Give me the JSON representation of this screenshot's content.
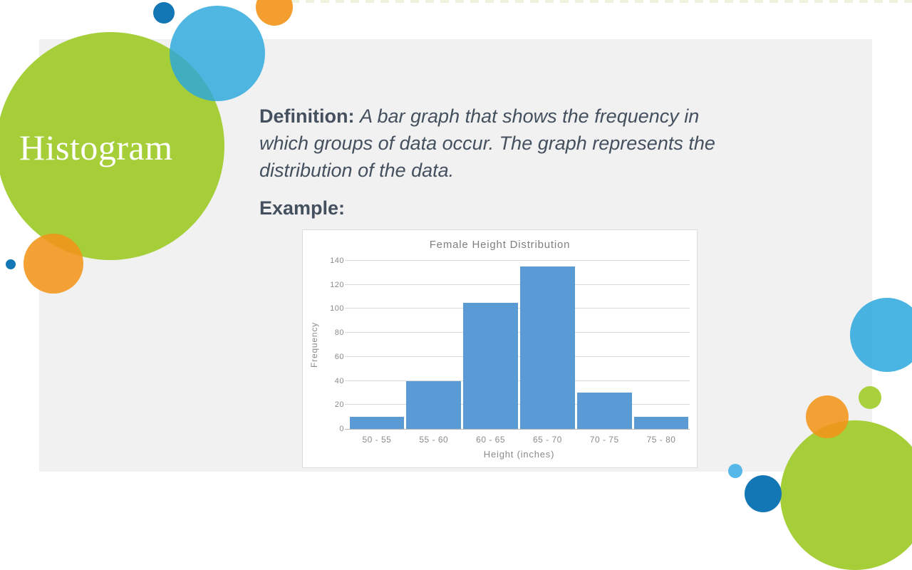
{
  "slide": {
    "title": "Histogram",
    "definition_label": "Definition:",
    "definition_text": "A bar graph that shows the frequency in which groups of data occur. The graph represents the distribution of the data.",
    "example_label": "Example:"
  },
  "palette": {
    "green": "#a5ce39",
    "light_blue": "#45b1e3",
    "dark_blue": "#1377b5",
    "orange": "#f3981b",
    "panel_gray": "#f1f1f2",
    "text_slate": "#44505e",
    "chart_text_gray": "#8a8a8a",
    "bar_blue": "#5b9bd5"
  },
  "chart_data": {
    "type": "bar",
    "title": "Female Height Distribution",
    "categories": [
      "50 - 55",
      "55 - 60",
      "60 - 65",
      "65 - 70",
      "70 - 75",
      "75 - 80"
    ],
    "values": [
      10,
      40,
      105,
      135,
      30,
      10
    ],
    "xlabel": "Height (inches)",
    "ylabel": "Frequency",
    "ylim": [
      0,
      140
    ],
    "yticks": [
      0,
      20,
      40,
      60,
      80,
      100,
      120,
      140
    ],
    "grid": true,
    "legend": false,
    "bar_color": "#5b9bd5"
  }
}
